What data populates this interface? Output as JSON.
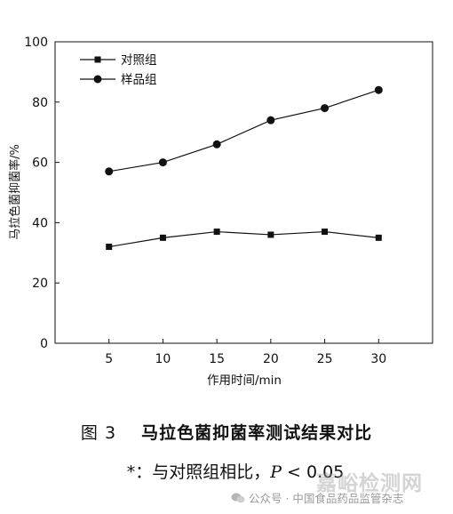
{
  "chart_data": {
    "type": "line",
    "title": "",
    "xlabel": "作用时间/min",
    "ylabel": "马拉色菌抑菌率/%",
    "x": [
      5,
      10,
      15,
      20,
      25,
      30
    ],
    "xlim": [
      0,
      35
    ],
    "ylim": [
      0,
      100
    ],
    "xticks": [
      "5",
      "10",
      "15",
      "20",
      "25",
      "30"
    ],
    "yticks": [
      "0",
      "20",
      "40",
      "60",
      "80",
      "100"
    ],
    "grid": false,
    "legend_position": "top-left",
    "series": [
      {
        "name": "对照组",
        "marker": "square",
        "color": "#111111",
        "values": [
          32,
          35,
          37,
          36,
          37,
          35
        ]
      },
      {
        "name": "样品组",
        "marker": "circle",
        "color": "#111111",
        "values": [
          57,
          60,
          66,
          74,
          78,
          84
        ]
      }
    ]
  },
  "figure": {
    "number": "图 3",
    "caption": "马拉色菌抑菌率测试结果对比",
    "note_prefix": "*：与对照组相比，",
    "note_var": "P",
    "note_rest": " < 0.05"
  },
  "watermark": {
    "brand": "嘉峪检测网",
    "source": "公众号 · 中国食品药品监管杂志"
  }
}
